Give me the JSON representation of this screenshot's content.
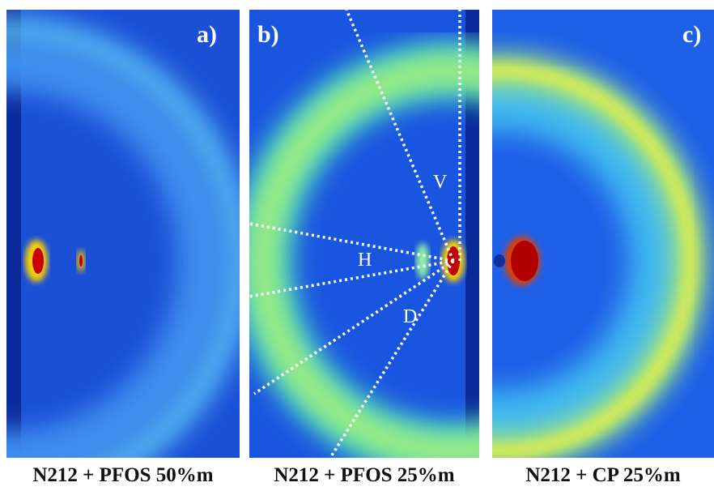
{
  "panels": [
    {
      "label": "a)",
      "caption": "N212 + PFOS 50%m"
    },
    {
      "label": "b)",
      "caption": "N212 + PFOS 25%m",
      "sectors": [
        "V",
        "H",
        "D"
      ]
    },
    {
      "label": "c)",
      "caption": "N212 + CP 25%m"
    }
  ]
}
